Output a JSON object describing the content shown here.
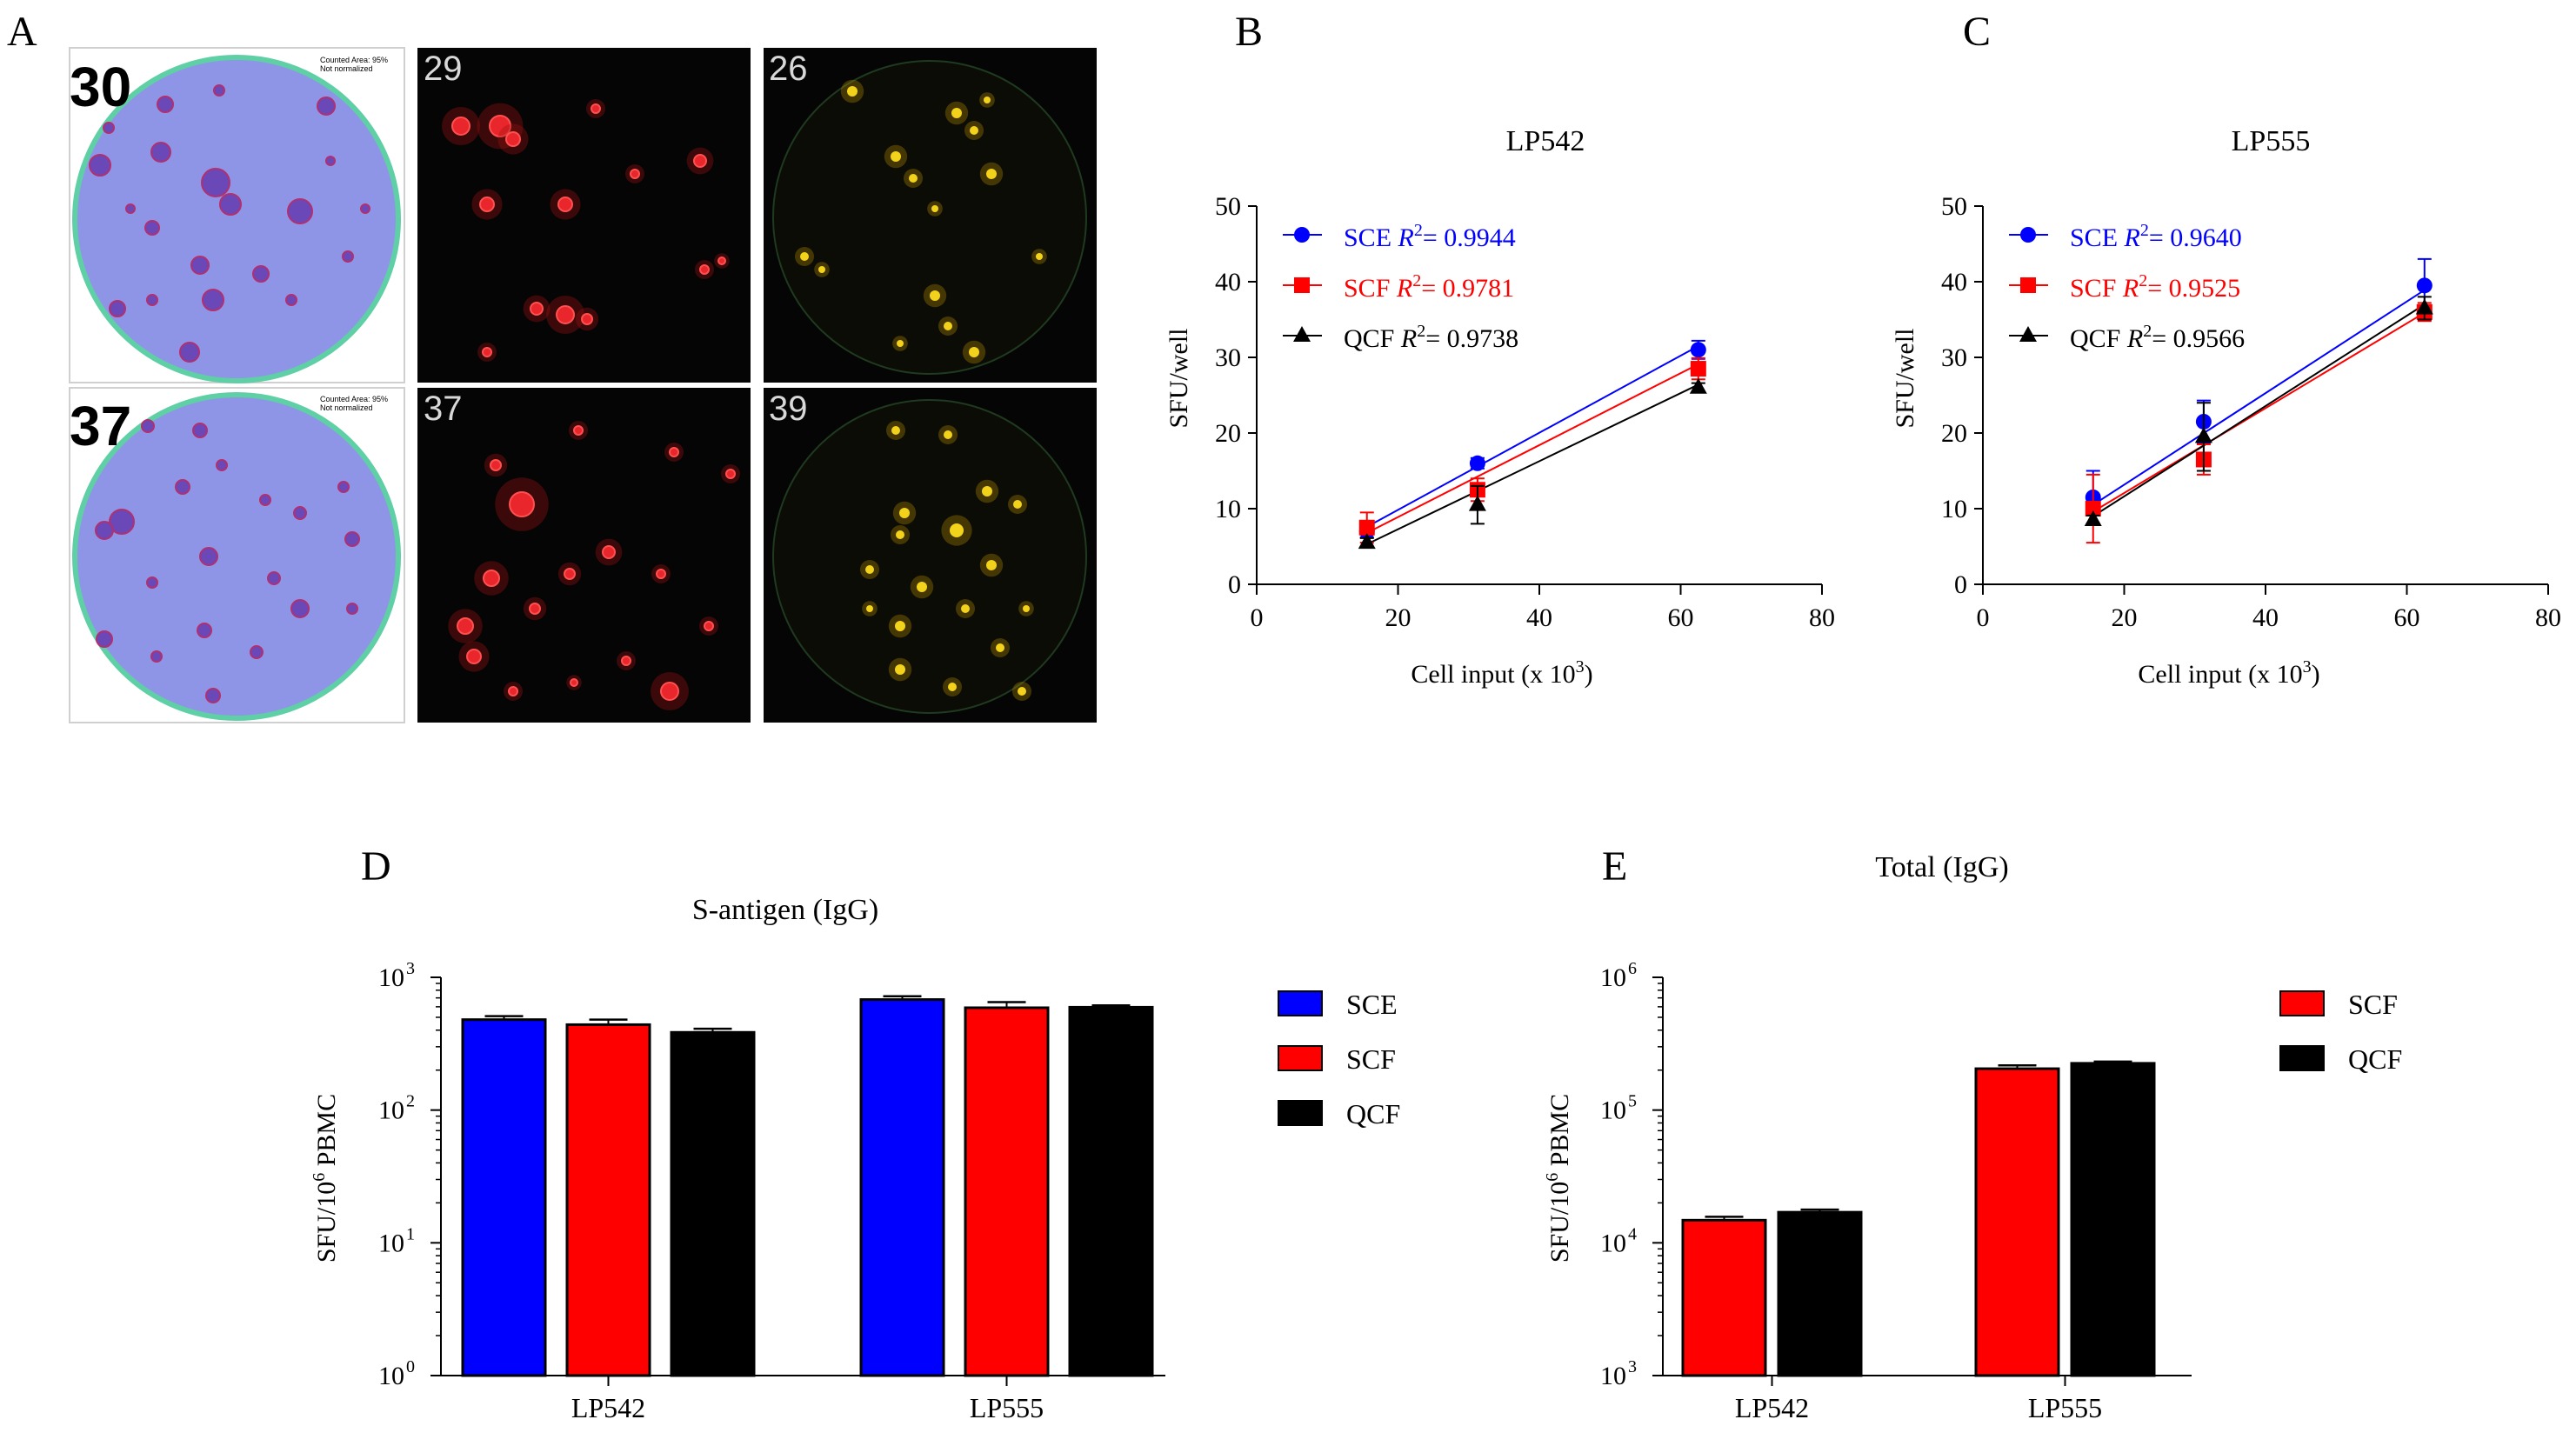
{
  "colors": {
    "sce": "#0000ff",
    "scf": "#ff0000",
    "qcf": "#000000",
    "plate_bg": "#8f95e6",
    "plate_rim": "#5fcfa6",
    "dark": "#050505",
    "red_spot": "#e8262c",
    "yellow_spot": "#f3d21b"
  },
  "panel_a": {
    "letter": "A",
    "rows": [
      {
        "plate_count": "30",
        "red_count": "29",
        "yellow_count": "26",
        "plate_note_1": "Counted Area: 95%",
        "plate_note_2": "Not normalized"
      },
      {
        "plate_count": "37",
        "red_count": "37",
        "yellow_count": "39",
        "plate_note_1": "Counted Area: 95%",
        "plate_note_2": "Not normalized"
      }
    ]
  },
  "chart_data": [
    {
      "id": "B",
      "type": "scatter",
      "panel_letter": "B",
      "title": "LP542",
      "xlabel": "Cell input (x 10",
      "xlabel_sup": "3",
      "xlabel_end": ")",
      "ylabel": "SFU/well",
      "xlim": [
        0,
        80
      ],
      "ylim": [
        0,
        50
      ],
      "xticks": [
        0,
        20,
        40,
        60,
        80
      ],
      "yticks": [
        0,
        10,
        20,
        30,
        40,
        50
      ],
      "x": [
        15.6,
        31.25,
        62.5
      ],
      "legend_position": "top-left",
      "series": [
        {
          "name": "SCE",
          "r2": "= 0.9944",
          "marker": "circle",
          "values": [
            7,
            16,
            31
          ],
          "err": [
            0.8,
            0.7,
            1.2
          ],
          "fit": [
            7.6,
            31.5
          ]
        },
        {
          "name": "SCF",
          "r2": "= 0.9781",
          "marker": "square",
          "values": [
            7.5,
            12.5,
            28.5
          ],
          "err": [
            2.0,
            1.5,
            1.4
          ],
          "fit": [
            6.8,
            29.1
          ]
        },
        {
          "name": "QCF",
          "r2": "= 0.9738",
          "marker": "triangle",
          "values": [
            5.5,
            10.5,
            26
          ],
          "err": [
            0.6,
            2.5,
            0.6
          ],
          "fit": [
            5.3,
            26.4
          ]
        }
      ]
    },
    {
      "id": "C",
      "type": "scatter",
      "panel_letter": "C",
      "title": "LP555",
      "xlabel": "Cell input (x 10",
      "xlabel_sup": "3",
      "xlabel_end": ")",
      "ylabel": "SFU/well",
      "xlim": [
        0,
        80
      ],
      "ylim": [
        0,
        50
      ],
      "xticks": [
        0,
        20,
        40,
        60,
        80
      ],
      "yticks": [
        0,
        10,
        20,
        30,
        40,
        50
      ],
      "x": [
        15.6,
        31.25,
        62.5
      ],
      "legend_position": "top-left",
      "series": [
        {
          "name": "SCE",
          "r2": "= 0.9640",
          "marker": "circle",
          "values": [
            11.5,
            21.5,
            39.5
          ],
          "err": [
            3.5,
            2.8,
            3.5
          ],
          "fit": [
            10.5,
            38.9
          ]
        },
        {
          "name": "SCF",
          "r2": "= 0.9525",
          "marker": "square",
          "values": [
            10,
            16.5,
            36
          ],
          "err": [
            4.5,
            2.0,
            1.2
          ],
          "fit": [
            9.6,
            35.9
          ]
        },
        {
          "name": "QCF",
          "r2": "= 0.9566",
          "marker": "triangle",
          "values": [
            8.5,
            19.5,
            36.5
          ],
          "err": [
            0.6,
            4.5,
            1.5
          ],
          "fit": [
            9.0,
            37.0
          ]
        }
      ]
    },
    {
      "id": "D",
      "type": "bar",
      "panel_letter": "D",
      "title": "S-antigen (IgG)",
      "ylabel": "SFU/10",
      "ylabel_sup": "6",
      "ylabel_end": " PBMC",
      "yscale": "log",
      "ylim": [
        1,
        1000
      ],
      "yticks": [
        1,
        10,
        100,
        1000
      ],
      "ytick_base": "10",
      "ytick_exps": [
        "0",
        "1",
        "2",
        "3"
      ],
      "categories": [
        "LP542",
        "LP555"
      ],
      "legend_position": "right",
      "series": [
        {
          "name": "SCE",
          "values": [
            480,
            680
          ],
          "err": [
            30,
            40
          ]
        },
        {
          "name": "SCF",
          "values": [
            440,
            590
          ],
          "err": [
            40,
            60
          ]
        },
        {
          "name": "QCF",
          "values": [
            385,
            595
          ],
          "err": [
            25,
            20
          ]
        }
      ]
    },
    {
      "id": "E",
      "type": "bar",
      "panel_letter": "E",
      "title": "Total (IgG)",
      "ylabel": "SFU/10",
      "ylabel_sup": "6",
      "ylabel_end": " PBMC",
      "yscale": "log",
      "ylim": [
        1000,
        1000000
      ],
      "yticks": [
        1000,
        10000,
        100000,
        1000000
      ],
      "ytick_base": "10",
      "ytick_exps": [
        "3",
        "4",
        "5",
        "6"
      ],
      "categories": [
        "LP542",
        "LP555"
      ],
      "legend_position": "right",
      "series": [
        {
          "name": "SCF",
          "values": [
            14800,
            205000
          ],
          "err": [
            900,
            12000
          ]
        },
        {
          "name": "QCF",
          "values": [
            17000,
            225000
          ],
          "err": [
            800,
            7000
          ]
        }
      ]
    }
  ]
}
